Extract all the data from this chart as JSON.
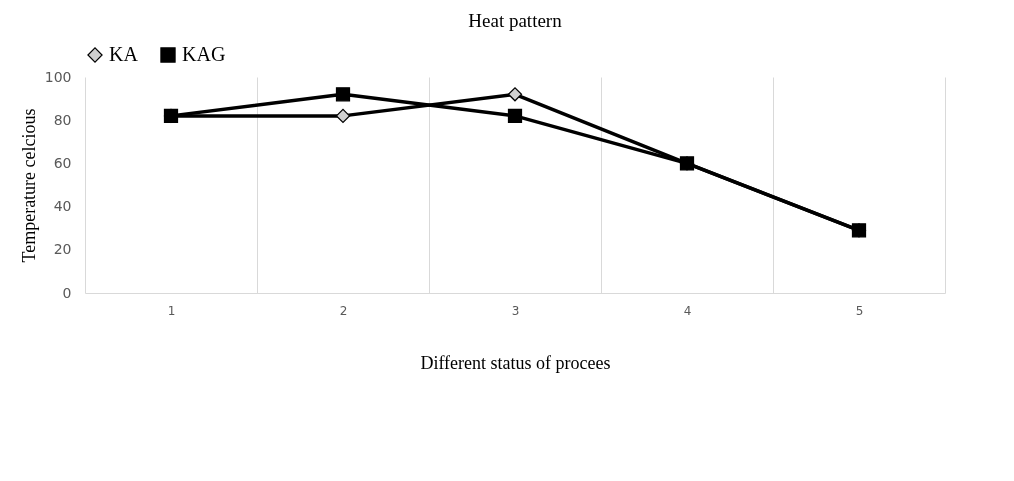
{
  "chart_data": {
    "type": "line",
    "title": "Heat pattern",
    "xlabel": "Different status of procees",
    "ylabel": "Temperature celcious",
    "categories": [
      "1",
      "2",
      "3",
      "4",
      "5"
    ],
    "series": [
      {
        "name": "KA",
        "color": "#000000",
        "marker": "diamond",
        "values": [
          82,
          82,
          92,
          60,
          29
        ]
      },
      {
        "name": "KAG",
        "color": "#000000",
        "marker": "square",
        "values": [
          82,
          92,
          82,
          60,
          29
        ]
      }
    ],
    "ylim": [
      0,
      100
    ],
    "yticks": [
      0,
      20,
      40,
      60,
      80,
      100
    ],
    "grid": "x",
    "legend": "top",
    "line_style": "solid"
  }
}
